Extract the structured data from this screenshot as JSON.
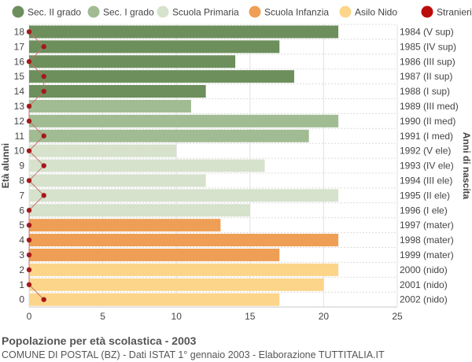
{
  "chart_data": {
    "type": "bar",
    "orientation": "horizontal",
    "xlim": [
      0,
      25
    ],
    "x_ticks": [
      0,
      5,
      10,
      15,
      20,
      25
    ],
    "ylabel_left": "Età alunni",
    "ylabel_right": "Anni di nascita",
    "grid": true,
    "legend_position": "top",
    "legend": [
      {
        "name": "Sec. II grado",
        "color": "#6d8f5c"
      },
      {
        "name": "Sec. I grado",
        "color": "#a1bc93"
      },
      {
        "name": "Scuola Primaria",
        "color": "#d6e2cc"
      },
      {
        "name": "Scuola Infanzia",
        "color": "#ee9f55"
      },
      {
        "name": "Asilo Nido",
        "color": "#fcd58a"
      },
      {
        "name": "Stranieri",
        "color": "#bb0c0c"
      }
    ],
    "rows": [
      {
        "age": "18",
        "birth": "1984 (V sup)",
        "value": 21,
        "foreign": 0,
        "group": 0
      },
      {
        "age": "17",
        "birth": "1985 (IV sup)",
        "value": 17,
        "foreign": 1,
        "group": 0
      },
      {
        "age": "16",
        "birth": "1986 (III sup)",
        "value": 14,
        "foreign": 0,
        "group": 0
      },
      {
        "age": "15",
        "birth": "1987 (II sup)",
        "value": 18,
        "foreign": 1,
        "group": 0
      },
      {
        "age": "14",
        "birth": "1988 (I sup)",
        "value": 12,
        "foreign": 1,
        "group": 0
      },
      {
        "age": "13",
        "birth": "1989 (III med)",
        "value": 11,
        "foreign": 0,
        "group": 1
      },
      {
        "age": "12",
        "birth": "1990 (II med)",
        "value": 21,
        "foreign": 0,
        "group": 1
      },
      {
        "age": "11",
        "birth": "1991 (I med)",
        "value": 19,
        "foreign": 1,
        "group": 1
      },
      {
        "age": "10",
        "birth": "1992 (V ele)",
        "value": 10,
        "foreign": 0,
        "group": 2
      },
      {
        "age": "9",
        "birth": "1993 (IV ele)",
        "value": 16,
        "foreign": 1,
        "group": 2
      },
      {
        "age": "8",
        "birth": "1994 (III ele)",
        "value": 12,
        "foreign": 0,
        "group": 2
      },
      {
        "age": "7",
        "birth": "1995 (II ele)",
        "value": 21,
        "foreign": 1,
        "group": 2
      },
      {
        "age": "6",
        "birth": "1996 (I ele)",
        "value": 15,
        "foreign": 0,
        "group": 2
      },
      {
        "age": "5",
        "birth": "1997 (mater)",
        "value": 13,
        "foreign": 0,
        "group": 3
      },
      {
        "age": "4",
        "birth": "1998 (mater)",
        "value": 21,
        "foreign": 0,
        "group": 3
      },
      {
        "age": "3",
        "birth": "1999 (mater)",
        "value": 17,
        "foreign": 0,
        "group": 3
      },
      {
        "age": "2",
        "birth": "2000 (nido)",
        "value": 21,
        "foreign": 0,
        "group": 4
      },
      {
        "age": "1",
        "birth": "2001 (nido)",
        "value": 20,
        "foreign": 0,
        "group": 4
      },
      {
        "age": "0",
        "birth": "2002 (nido)",
        "value": 17,
        "foreign": 1,
        "group": 4
      }
    ]
  },
  "footer": {
    "title": "Popolazione per età scolastica - 2003",
    "subtitle": "COMUNE DI POSTAL (BZ) - Dati ISTAT 1° gennaio 2003 - Elaborazione TUTTITALIA.IT"
  }
}
